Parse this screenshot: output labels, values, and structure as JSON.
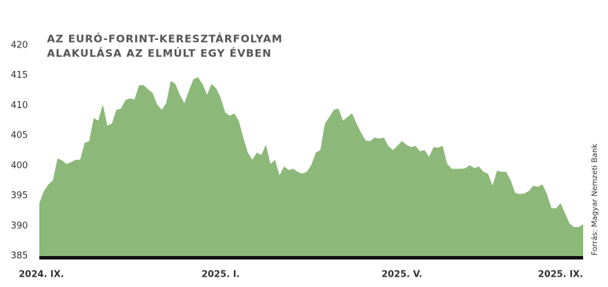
{
  "chart_data": {
    "type": "area",
    "title": [
      "AZ EURÓ-FORINT-KERESZTÁRFOLYAM",
      "ALAKULÁSA AZ ELMÚLT EGY ÉVBEN"
    ],
    "source": "Forrás: Magyar Nemzeti Bank",
    "categories": [
      "2024. IX.",
      null,
      null,
      null,
      null,
      null,
      null,
      null,
      null,
      null,
      null,
      null,
      null,
      null,
      null,
      null,
      null,
      null,
      null,
      null,
      null,
      null,
      null,
      null,
      null,
      null,
      null,
      null,
      null,
      null,
      null,
      null,
      null,
      null,
      null,
      null,
      null,
      null,
      null,
      null,
      "2025. I.",
      null,
      null,
      null,
      null,
      null,
      null,
      null,
      null,
      null,
      null,
      null,
      null,
      null,
      null,
      null,
      null,
      null,
      null,
      null,
      null,
      null,
      null,
      null,
      null,
      null,
      null,
      null,
      null,
      null,
      null,
      null,
      null,
      null,
      null,
      null,
      null,
      null,
      null,
      null,
      "2025. V.",
      null,
      null,
      null,
      null,
      null,
      null,
      null,
      null,
      null,
      null,
      null,
      null,
      null,
      null,
      null,
      null,
      null,
      null,
      null,
      null,
      null,
      null,
      null,
      null,
      null,
      null,
      null,
      null,
      null,
      null,
      null,
      null,
      null,
      null,
      null,
      null,
      null,
      null,
      null,
      "2025. IX."
    ],
    "values": [
      393.8,
      395.8,
      396.9,
      397.6,
      401.2,
      400.9,
      400.3,
      400.6,
      401.0,
      401.0,
      403.8,
      404.1,
      407.9,
      407.5,
      410.2,
      406.7,
      407.0,
      409.3,
      409.5,
      410.9,
      411.2,
      411.0,
      413.4,
      413.4,
      412.7,
      412.1,
      410.2,
      409.3,
      410.4,
      414.1,
      413.6,
      411.8,
      410.4,
      412.5,
      414.4,
      414.7,
      413.6,
      411.8,
      413.6,
      412.9,
      411.3,
      408.9,
      408.3,
      408.7,
      407.5,
      404.7,
      402.2,
      401.0,
      402.2,
      401.8,
      403.5,
      400.3,
      401.0,
      398.4,
      399.9,
      399.3,
      399.5,
      399.0,
      398.7,
      399.0,
      400.1,
      402.2,
      402.6,
      407.0,
      408.1,
      409.3,
      409.5,
      407.5,
      408.1,
      408.7,
      407.0,
      405.5,
      404.2,
      404.1,
      404.7,
      404.5,
      404.7,
      403.3,
      402.6,
      403.3,
      404.1,
      403.5,
      403.1,
      403.3,
      402.4,
      402.6,
      401.5,
      403.1,
      403.0,
      403.3,
      400.3,
      399.5,
      399.5,
      399.5,
      399.6,
      400.1,
      399.6,
      399.9,
      399.0,
      398.7,
      396.7,
      399.2,
      399.0,
      399.0,
      397.6,
      395.5,
      395.3,
      395.4,
      395.8,
      396.7,
      396.5,
      396.9,
      395.3,
      393.0,
      392.9,
      393.8,
      392.1,
      390.4,
      389.8,
      389.8,
      390.3
    ],
    "color": "#8cb87a",
    "ylim": [
      385,
      420
    ],
    "yticks": [
      385,
      390,
      395,
      400,
      405,
      410,
      415,
      420
    ],
    "grid": false
  }
}
